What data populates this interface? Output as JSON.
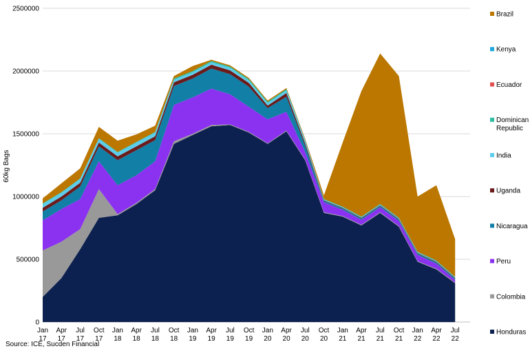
{
  "chart_data": {
    "type": "area",
    "stacked": true,
    "ylabel": "60kg Bags",
    "ylim": [
      0,
      2500000
    ],
    "yticks": [
      "0",
      "500000",
      "1000000",
      "1500000",
      "2000000",
      "2500000"
    ],
    "grid": "horizontal",
    "legend_position": "right",
    "x": [
      "Jan 17",
      "Apr 17",
      "Jul 17",
      "Oct 17",
      "Jan 18",
      "Apr 18",
      "Jul 18",
      "Oct 18",
      "Jan 19",
      "Apr 19",
      "Jul 19",
      "Oct 19",
      "Jan 20",
      "Apr 20",
      "Jul 20",
      "Oct 20",
      "Jan 21",
      "Apr 21",
      "Jul 21",
      "Oct 21",
      "Jan 22",
      "Apr 22",
      "Jul 22"
    ],
    "x_tick_labels": [
      {
        "top": "Jan",
        "bottom": "17"
      },
      {
        "top": "Apr",
        "bottom": "17"
      },
      {
        "top": "Jul",
        "bottom": "17"
      },
      {
        "top": "Oct",
        "bottom": "17"
      },
      {
        "top": "Jan",
        "bottom": "18"
      },
      {
        "top": "Apr",
        "bottom": "18"
      },
      {
        "top": "Jul",
        "bottom": "18"
      },
      {
        "top": "Oct",
        "bottom": "18"
      },
      {
        "top": "Jan",
        "bottom": "19"
      },
      {
        "top": "Apr",
        "bottom": "19"
      },
      {
        "top": "Jul",
        "bottom": "19"
      },
      {
        "top": "Oct",
        "bottom": "19"
      },
      {
        "top": "Jan",
        "bottom": "20"
      },
      {
        "top": "Apr",
        "bottom": "20"
      },
      {
        "top": "Jul",
        "bottom": "20"
      },
      {
        "top": "Oct",
        "bottom": "20"
      },
      {
        "top": "Jan",
        "bottom": "21"
      },
      {
        "top": "Apr",
        "bottom": "21"
      },
      {
        "top": "Jul",
        "bottom": "21"
      },
      {
        "top": "Oct",
        "bottom": "21"
      },
      {
        "top": "Jan",
        "bottom": "22"
      },
      {
        "top": "Apr",
        "bottom": "22"
      },
      {
        "top": "Jul",
        "bottom": "22"
      }
    ],
    "series": [
      {
        "name": "Honduras",
        "color": "#0d2150",
        "values": [
          200000,
          350000,
          580000,
          830000,
          850000,
          940000,
          1050000,
          1420000,
          1490000,
          1560000,
          1570000,
          1510000,
          1420000,
          1520000,
          1290000,
          870000,
          840000,
          770000,
          870000,
          760000,
          480000,
          420000,
          310000
        ]
      },
      {
        "name": "Colombia",
        "color": "#999999",
        "values": [
          370000,
          290000,
          160000,
          230000,
          10000,
          10000,
          10000,
          20000,
          10000,
          10000,
          5000,
          5000,
          5000,
          5000,
          5000,
          5000,
          5000,
          5000,
          5000,
          5000,
          5000,
          5000,
          5000
        ]
      },
      {
        "name": "Peru",
        "color": "#8b32f0",
        "values": [
          240000,
          260000,
          240000,
          220000,
          230000,
          220000,
          220000,
          290000,
          290000,
          290000,
          240000,
          200000,
          190000,
          150000,
          60000,
          80000,
          50000,
          40000,
          40000,
          40000,
          50000,
          40000,
          20000
        ]
      },
      {
        "name": "Nicaragua",
        "color": "#127fa7",
        "values": [
          70000,
          70000,
          100000,
          120000,
          200000,
          200000,
          170000,
          150000,
          150000,
          160000,
          160000,
          160000,
          90000,
          120000,
          50000,
          10000,
          10000,
          10000,
          10000,
          10000,
          10000,
          10000,
          10000
        ]
      },
      {
        "name": "Uganda",
        "color": "#6c1b1b",
        "values": [
          30000,
          30000,
          30000,
          30000,
          30000,
          30000,
          30000,
          30000,
          30000,
          30000,
          30000,
          30000,
          20000,
          30000,
          20000,
          5000,
          5000,
          5000,
          5000,
          5000,
          5000,
          5000,
          5000
        ]
      },
      {
        "name": "India",
        "color": "#5dcdec",
        "values": [
          30000,
          30000,
          30000,
          30000,
          30000,
          30000,
          30000,
          20000,
          20000,
          20000,
          20000,
          20000,
          20000,
          20000,
          20000,
          5000,
          5000,
          5000,
          5000,
          5000,
          5000,
          5000,
          5000
        ]
      },
      {
        "name": "Dominican Republic",
        "color": "#2dbba0",
        "values": [
          5000,
          5000,
          5000,
          5000,
          5000,
          5000,
          5000,
          10000,
          10000,
          10000,
          10000,
          10000,
          10000,
          10000,
          5000,
          5000,
          5000,
          5000,
          5000,
          5000,
          5000,
          5000,
          5000
        ]
      },
      {
        "name": "Ecuador",
        "color": "#e05050",
        "values": [
          0,
          0,
          0,
          0,
          0,
          0,
          0,
          0,
          0,
          0,
          0,
          0,
          0,
          0,
          0,
          0,
          0,
          0,
          0,
          0,
          0,
          0,
          0
        ]
      },
      {
        "name": "Kenya",
        "color": "#1ea8dc",
        "values": [
          0,
          0,
          0,
          0,
          0,
          0,
          0,
          0,
          0,
          0,
          0,
          0,
          0,
          0,
          0,
          0,
          0,
          0,
          0,
          0,
          0,
          0,
          0
        ]
      },
      {
        "name": "Brazil",
        "color": "#bb7700",
        "values": [
          40000,
          70000,
          80000,
          90000,
          90000,
          60000,
          50000,
          20000,
          40000,
          10000,
          10000,
          10000,
          10000,
          10000,
          10000,
          30000,
          510000,
          1000000,
          1200000,
          1130000,
          440000,
          600000,
          300000
        ]
      }
    ],
    "legend": [
      {
        "label": "Brazil",
        "color": "#bb7700"
      },
      {
        "label": "Kenya",
        "color": "#1ea8dc"
      },
      {
        "label": "Ecuador",
        "color": "#e05050"
      },
      {
        "label": "Dominican Republic",
        "color": "#2dbba0",
        "lines": [
          "Dominican",
          "Republic"
        ]
      },
      {
        "label": "India",
        "color": "#5dcdec"
      },
      {
        "label": "Uganda",
        "color": "#6c1b1b"
      },
      {
        "label": "Nicaragua",
        "color": "#127fa7"
      },
      {
        "label": "Peru",
        "color": "#8b32f0"
      },
      {
        "label": "Colombia",
        "color": "#999999"
      },
      {
        "label": "Honduras",
        "color": "#0d2150"
      }
    ]
  },
  "source_text": "Source: ICE, Sucden Financial"
}
